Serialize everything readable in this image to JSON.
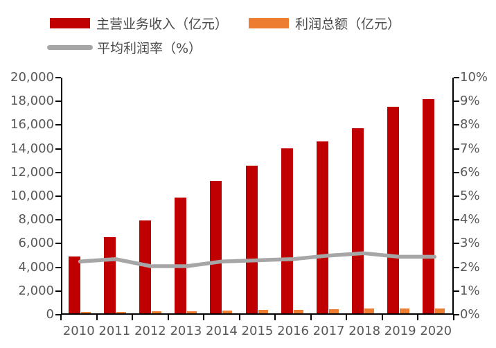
{
  "legend": {
    "items": [
      {
        "label": "主营业务收入（亿元）",
        "color": "#c00000",
        "swatch": "bar"
      },
      {
        "label": "利润总额（亿元）",
        "color": "#ed7d31",
        "swatch": "bar"
      },
      {
        "label": "平均利润率（%）",
        "color": "#a6a6a6",
        "swatch": "line"
      }
    ]
  },
  "colors": {
    "revenue_bar": "#c00000",
    "profit_bar": "#ed7d31",
    "margin_line": "#a6a6a6",
    "axis_line": "#000000",
    "axis_text": "#595959"
  },
  "chart_data": {
    "type": "bar",
    "subtype": "bar+line-dual-axis",
    "title": "",
    "categories": [
      "2010",
      "2011",
      "2012",
      "2013",
      "2014",
      "2015",
      "2016",
      "2017",
      "2018",
      "2019",
      "2020"
    ],
    "series": [
      {
        "name": "主营业务收入（亿元）",
        "type": "bar",
        "axis": "left",
        "color": "#c00000",
        "values": [
          4800,
          6500,
          7900,
          9850,
          11250,
          12550,
          14000,
          14600,
          15700,
          17550,
          18200
        ]
      },
      {
        "name": "利润总额（亿元）",
        "type": "bar",
        "axis": "left",
        "color": "#ed7d31",
        "values": [
          105,
          150,
          160,
          195,
          250,
          285,
          320,
          360,
          400,
          420,
          440
        ]
      },
      {
        "name": "平均利润率（%）",
        "type": "line",
        "axis": "right",
        "color": "#a6a6a6",
        "values": [
          2.2,
          2.3,
          2.0,
          2.0,
          2.2,
          2.25,
          2.3,
          2.45,
          2.55,
          2.4,
          2.4
        ]
      }
    ],
    "left_axis": {
      "min": 0,
      "max": 20000,
      "step": 2000,
      "tick_labels": [
        "0",
        "2,000",
        "4,000",
        "6,000",
        "8,000",
        "10,000",
        "12,000",
        "14,000",
        "16,000",
        "18,000",
        "20,000"
      ]
    },
    "right_axis": {
      "min": 0,
      "max": 10,
      "step": 1,
      "tick_labels": [
        "0%",
        "1%",
        "2%",
        "3%",
        "4%",
        "5%",
        "6%",
        "7%",
        "8%",
        "9%",
        "10%"
      ]
    },
    "grid": false,
    "legend_position": "top-left"
  }
}
